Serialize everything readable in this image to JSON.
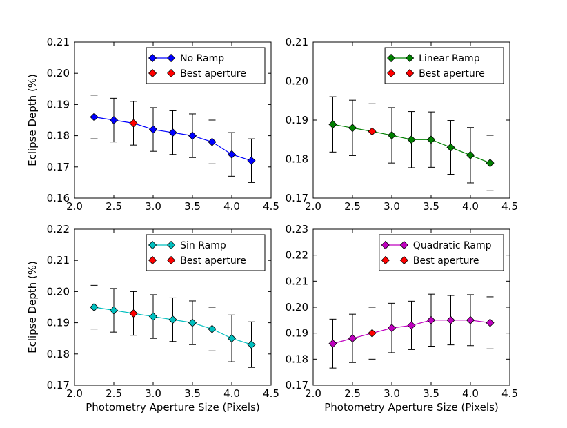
{
  "figure": {
    "xlabel": "Photometry Aperture Size (Pixels)",
    "ylabel": "Eclipse Depth (%)"
  },
  "colors": {
    "best": "#ff0000",
    "frame": "#000000",
    "errorbar": "#000000"
  },
  "chart_data": [
    {
      "type": "line",
      "panel": "top-left",
      "series_label": "No Ramp",
      "best_label": "Best aperture",
      "color": "#0000ff",
      "xlim": [
        2.0,
        4.5
      ],
      "ylim": [
        0.16,
        0.21
      ],
      "xticks": [
        "2.0",
        "2.5",
        "3.0",
        "3.5",
        "4.0",
        "4.5"
      ],
      "yticks": [
        "0.16",
        "0.17",
        "0.18",
        "0.19",
        "0.20",
        "0.21"
      ],
      "x": [
        2.25,
        2.5,
        2.75,
        3.0,
        3.25,
        3.5,
        3.75,
        4.0,
        4.25
      ],
      "y": [
        0.186,
        0.185,
        0.184,
        0.182,
        0.181,
        0.18,
        0.178,
        0.174,
        0.172
      ],
      "err": [
        0.007,
        0.007,
        0.007,
        0.007,
        0.007,
        0.007,
        0.007,
        0.007,
        0.007
      ],
      "best_index": 2,
      "legend": "top-right",
      "show_xlabel": false,
      "show_ylabel": true
    },
    {
      "type": "line",
      "panel": "top-right",
      "series_label": "Linear Ramp",
      "best_label": "Best aperture",
      "color": "#008000",
      "xlim": [
        2.0,
        4.5
      ],
      "ylim": [
        0.17,
        0.21
      ],
      "xticks": [
        "2.0",
        "2.5",
        "3.0",
        "3.5",
        "4.0",
        "4.5"
      ],
      "yticks": [
        "0.17",
        "0.18",
        "0.19",
        "0.20",
        "0.21"
      ],
      "x": [
        2.25,
        2.5,
        2.75,
        3.0,
        3.25,
        3.5,
        3.75,
        4.0,
        4.25
      ],
      "y": [
        0.1889,
        0.188,
        0.1871,
        0.1861,
        0.185,
        0.185,
        0.183,
        0.181,
        0.179
      ],
      "err": [
        0.0071,
        0.0071,
        0.0071,
        0.0071,
        0.0072,
        0.0071,
        0.0069,
        0.0071,
        0.0071
      ],
      "best_index": 2,
      "legend": "top-right",
      "show_xlabel": false,
      "show_ylabel": false
    },
    {
      "type": "line",
      "panel": "bottom-left",
      "series_label": "Sin Ramp",
      "best_label": "Best aperture",
      "color": "#00bfbf",
      "xlim": [
        2.0,
        4.5
      ],
      "ylim": [
        0.17,
        0.22
      ],
      "xticks": [
        "2.0",
        "2.5",
        "3.0",
        "3.5",
        "4.0",
        "4.5"
      ],
      "yticks": [
        "0.17",
        "0.18",
        "0.19",
        "0.20",
        "0.21",
        "0.22"
      ],
      "x": [
        2.25,
        2.5,
        2.75,
        3.0,
        3.25,
        3.5,
        3.75,
        4.0,
        4.25
      ],
      "y": [
        0.195,
        0.194,
        0.193,
        0.192,
        0.191,
        0.19,
        0.188,
        0.185,
        0.183
      ],
      "err": [
        0.007,
        0.007,
        0.007,
        0.007,
        0.007,
        0.007,
        0.007,
        0.0075,
        0.0073
      ],
      "best_index": 2,
      "legend": "top-right",
      "show_xlabel": true,
      "show_ylabel": true
    },
    {
      "type": "line",
      "panel": "bottom-right",
      "series_label": "Quadratic Ramp",
      "best_label": "Best aperture",
      "color": "#bf00bf",
      "xlim": [
        2.0,
        4.5
      ],
      "ylim": [
        0.17,
        0.23
      ],
      "xticks": [
        "2.0",
        "2.5",
        "3.0",
        "3.5",
        "4.0",
        "4.5"
      ],
      "yticks": [
        "0.17",
        "0.18",
        "0.19",
        "0.20",
        "0.21",
        "0.22",
        "0.23"
      ],
      "x": [
        2.25,
        2.5,
        2.75,
        3.0,
        3.25,
        3.5,
        3.75,
        4.0,
        4.25
      ],
      "y": [
        0.186,
        0.188,
        0.19,
        0.192,
        0.193,
        0.195,
        0.195,
        0.195,
        0.194
      ],
      "err": [
        0.0094,
        0.0093,
        0.01,
        0.0095,
        0.0093,
        0.01,
        0.0095,
        0.0098,
        0.01
      ],
      "best_index": 2,
      "legend": "top-right",
      "show_xlabel": true,
      "show_ylabel": false
    }
  ]
}
